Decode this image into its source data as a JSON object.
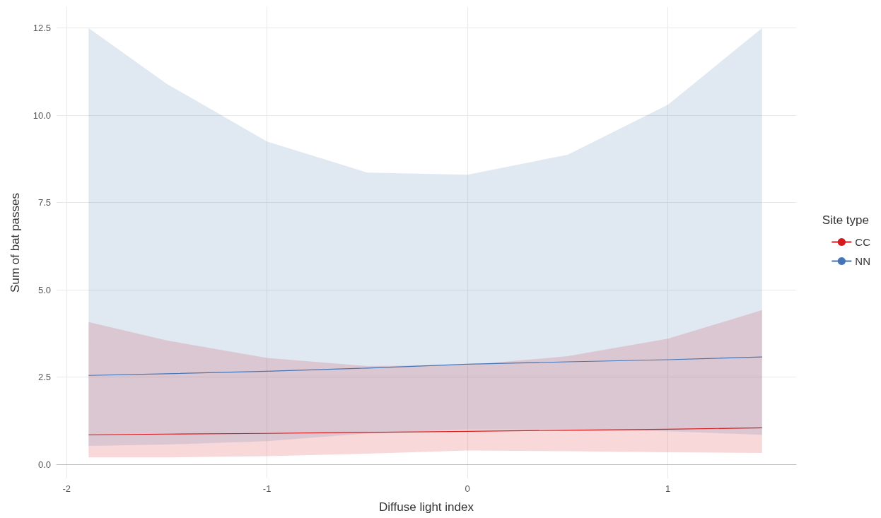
{
  "chart_data": {
    "type": "line",
    "xlabel": "Diffuse light index",
    "ylabel": "Sum of bat passes",
    "legend_title": "Site type",
    "legend": "right",
    "grid": true,
    "marker": "none",
    "xlim": [
      -2.05,
      1.64
    ],
    "xticks": [
      -2,
      -1,
      0,
      1
    ],
    "ylim": [
      -0.4,
      13.1
    ],
    "yticks": [
      {
        "value": 0,
        "label": "0.0"
      },
      {
        "value": 2.5,
        "label": "2.5"
      },
      {
        "value": 5,
        "label": "5.0"
      },
      {
        "value": 7.5,
        "label": "7.5"
      },
      {
        "value": 10,
        "label": "10.0"
      },
      {
        "value": 12.5,
        "label": "12.5"
      }
    ],
    "series": [
      {
        "name": "CC",
        "color": "#d7191c",
        "x": [
          -1.89,
          -1.5,
          -1,
          -0.5,
          0,
          0.5,
          1,
          1.47
        ],
        "values": [
          0.85,
          0.87,
          0.89,
          0.92,
          0.95,
          0.98,
          1.01,
          1.05
        ],
        "lower": [
          0.2,
          0.2,
          0.24,
          0.31,
          0.4,
          0.38,
          0.35,
          0.33
        ],
        "upper": [
          4.08,
          3.55,
          3.05,
          2.82,
          2.85,
          3.1,
          3.6,
          4.42
        ]
      },
      {
        "name": "NN",
        "color": "#4575b4",
        "x": [
          -1.89,
          -1.5,
          -1,
          -0.5,
          0,
          0.5,
          1,
          1.47
        ],
        "values": [
          2.55,
          2.6,
          2.67,
          2.76,
          2.87,
          2.94,
          3.0,
          3.08
        ],
        "lower": [
          0.53,
          0.57,
          0.67,
          0.89,
          1.0,
          1.0,
          0.95,
          0.85
        ],
        "upper": [
          12.5,
          10.9,
          9.25,
          8.36,
          8.3,
          8.87,
          10.3,
          12.5
        ]
      }
    ]
  }
}
